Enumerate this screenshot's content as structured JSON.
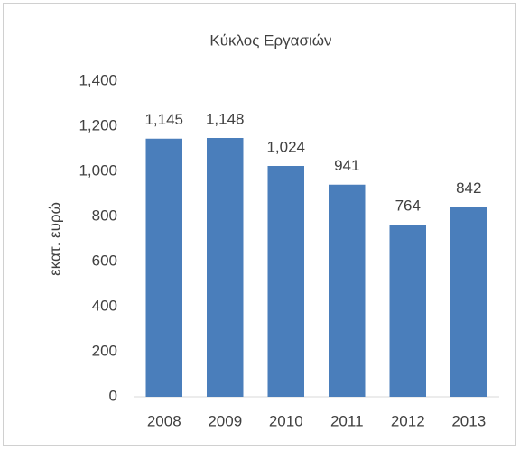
{
  "chart_data": {
    "type": "bar",
    "title": "Κύκλος Εργασιών",
    "y_label": "εκατ. ευρώ",
    "categories": [
      "2008",
      "2009",
      "2010",
      "2011",
      "2012",
      "2013"
    ],
    "values": [
      1145,
      1148,
      1024,
      941,
      764,
      842
    ],
    "value_labels": [
      "1,145",
      "1,148",
      "1,024",
      "941",
      "764",
      "842"
    ],
    "color": "#4a7ebb",
    "ylim": [
      0,
      1400
    ],
    "yticks": [
      0,
      200,
      400,
      600,
      800,
      {
        "value": 1000,
        "label": "1,000"
      },
      {
        "value": 1200,
        "label": "1,200"
      },
      {
        "value": 1400,
        "label": "1,400"
      }
    ],
    "grid": false
  }
}
